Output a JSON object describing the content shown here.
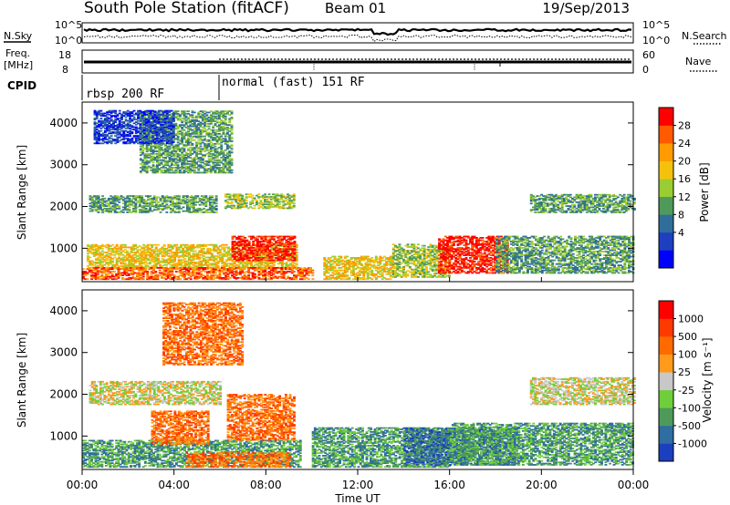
{
  "header": {
    "station": "South Pole Station (fitACF)",
    "beam": "Beam 01",
    "date": "19/Sep/2013"
  },
  "top_panels": {
    "nsky_label": "N.Sky",
    "nsearch_label": "N.Search",
    "noise_ticks": [
      "10^5",
      "10^0"
    ],
    "freq_label": "Freq.",
    "freq_unit": "[MHz]",
    "freq_ticks": [
      "18",
      "8"
    ],
    "nave_label": "Nave",
    "nave_ticks": [
      "60",
      "0"
    ],
    "cpid_label": "CPID",
    "cpid_modes": [
      {
        "label": "rbsp 200 RF",
        "start_hour": 0
      },
      {
        "label": "normal (fast) 151 RF",
        "start_hour": 6
      }
    ]
  },
  "chart_data": [
    {
      "type": "heatmap",
      "name": "power",
      "ylabel": "Slant Range [km]",
      "ylim": [
        200,
        4500
      ],
      "xlim_hours": [
        0,
        24
      ],
      "yticks": [
        1000,
        2000,
        3000,
        4000
      ],
      "colorbar": {
        "label": "Power [dB]",
        "ticks": [
          "28",
          "24",
          "20",
          "16",
          "12",
          "8",
          "4"
        ],
        "colors": [
          "#0000ff",
          "#1e3fbf",
          "#2f6e9a",
          "#4f9a5a",
          "#9acd32",
          "#f4c20d",
          "#ff9a00",
          "#ff5a00",
          "#ff0000"
        ]
      },
      "regions": [
        {
          "t": [
            0.3,
            5.8
          ],
          "r": [
            1850,
            2250
          ],
          "level": 3
        },
        {
          "t": [
            6.2,
            9.2
          ],
          "r": [
            1950,
            2300
          ],
          "level": 4
        },
        {
          "t": [
            0.2,
            9.3
          ],
          "r": [
            500,
            1100
          ],
          "level": 5
        },
        {
          "t": [
            0,
            10
          ],
          "r": [
            250,
            550
          ],
          "level": 7
        },
        {
          "t": [
            6.5,
            9.2
          ],
          "r": [
            700,
            1300
          ],
          "level": 8
        },
        {
          "t": [
            2.5,
            6.5
          ],
          "r": [
            2800,
            4300
          ],
          "level": 3
        },
        {
          "t": [
            10.5,
            13.5
          ],
          "r": [
            250,
            800
          ],
          "level": 5
        },
        {
          "t": [
            13.5,
            16
          ],
          "r": [
            300,
            1100
          ],
          "level": 4
        },
        {
          "t": [
            15.5,
            18.5
          ],
          "r": [
            400,
            1300
          ],
          "level": 8
        },
        {
          "t": [
            18,
            24
          ],
          "r": [
            400,
            1300
          ],
          "level": 3
        },
        {
          "t": [
            19.5,
            24
          ],
          "r": [
            1850,
            2300
          ],
          "level": 3
        },
        {
          "t": [
            0.5,
            4
          ],
          "r": [
            3500,
            4300
          ],
          "level": 1
        }
      ]
    },
    {
      "type": "heatmap",
      "name": "velocity",
      "ylabel": "Slant Range [km]",
      "ylim": [
        200,
        4500
      ],
      "xlim_hours": [
        0,
        24
      ],
      "yticks": [
        1000,
        2000,
        3000,
        4000
      ],
      "xticks": [
        "00:00",
        "04:00",
        "08:00",
        "12:00",
        "16:00",
        "20:00",
        "00:00"
      ],
      "xlabel": "Time UT",
      "colorbar": {
        "label": "Velocity [m s⁻¹]",
        "ticks": [
          "1000",
          "500",
          "100",
          "25",
          "-25",
          "-100",
          "-500",
          "-1000"
        ],
        "colors": [
          "#1c3fbf",
          "#2f6ea0",
          "#4f9a5a",
          "#6fcf3a",
          "#c8c8c8",
          "#ff9a1a",
          "#ff6a00",
          "#ff3a00",
          "#ff0000"
        ]
      },
      "regions": [
        {
          "t": [
            0.3,
            6
          ],
          "r": [
            1750,
            2300
          ],
          "level": 4
        },
        {
          "t": [
            19.5,
            24
          ],
          "r": [
            1750,
            2400
          ],
          "level": 4
        },
        {
          "t": [
            0,
            9.5
          ],
          "r": [
            250,
            900
          ],
          "level": 2
        },
        {
          "t": [
            3,
            5.5
          ],
          "r": [
            800,
            1600
          ],
          "level": 6
        },
        {
          "t": [
            6.3,
            9.2
          ],
          "r": [
            900,
            2000
          ],
          "level": 6
        },
        {
          "t": [
            3.5,
            7
          ],
          "r": [
            2700,
            4200
          ],
          "level": 6
        },
        {
          "t": [
            10,
            16
          ],
          "r": [
            250,
            1200
          ],
          "level": 2
        },
        {
          "t": [
            14,
            19
          ],
          "r": [
            300,
            1200
          ],
          "level": 1
        },
        {
          "t": [
            16,
            24
          ],
          "r": [
            300,
            1300
          ],
          "level": 2
        },
        {
          "t": [
            4.5,
            9
          ],
          "r": [
            250,
            600
          ],
          "level": 6
        }
      ]
    }
  ]
}
